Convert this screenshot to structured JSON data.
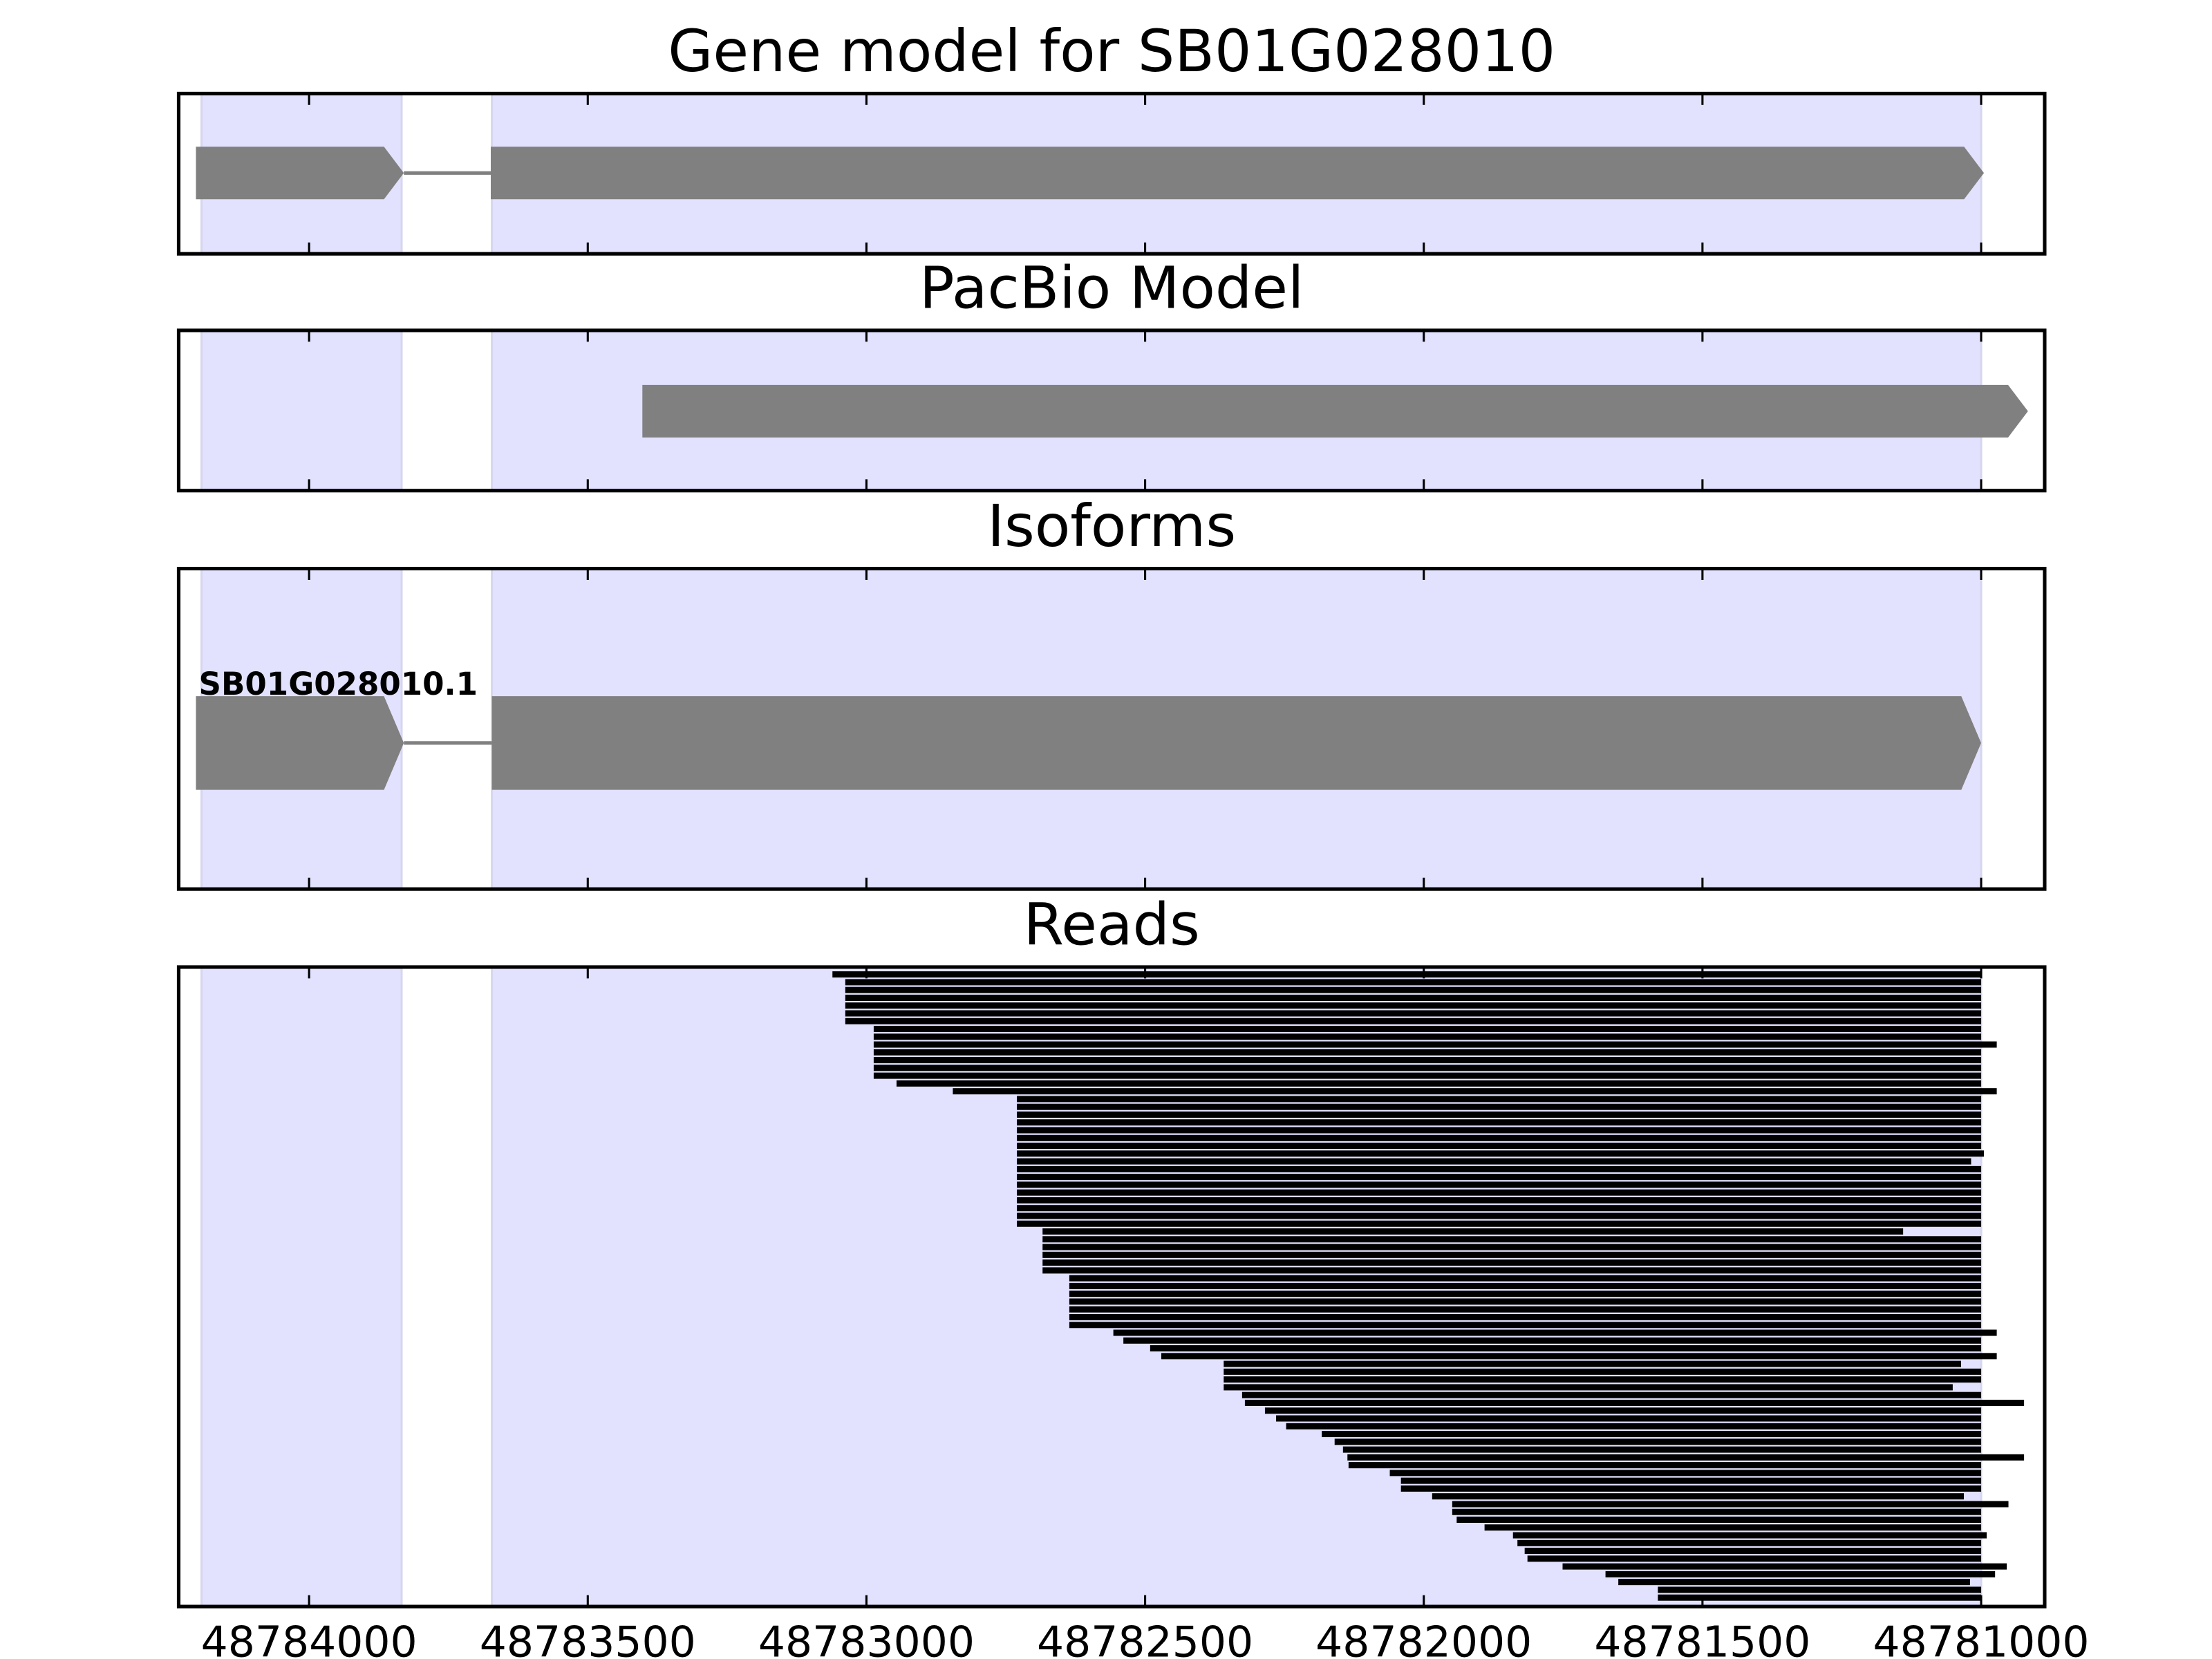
{
  "chart_data": [
    {
      "type": "gene",
      "title": "Gene model for SB01G028010",
      "xlim": [
        48784234,
        48780886
      ],
      "xticks": [
        48784000,
        48783500,
        48783000,
        48782500,
        48782000,
        48781500,
        48781000
      ],
      "highlight_regions": [
        [
          48784193,
          48783834
        ],
        [
          48783672,
          48781000
        ]
      ],
      "highlight_color": "#e2e2ff",
      "exons": [
        {
          "start": 48784203,
          "end": 48783830
        },
        {
          "start": 48783674,
          "end": 48780995
        }
      ],
      "color": "#808080"
    },
    {
      "type": "gene",
      "title": "PacBio Model",
      "xlim": [
        48784234,
        48780886
      ],
      "xticks": [
        48784000,
        48783500,
        48783000,
        48782500,
        48782000,
        48781500,
        48781000
      ],
      "highlight_regions": [
        [
          48784193,
          48783834
        ],
        [
          48783672,
          48781000
        ]
      ],
      "highlight_color": "#e2e2ff",
      "exons": [
        {
          "start": 48783402,
          "end": 48780916
        }
      ],
      "color": "#808080"
    },
    {
      "type": "gene",
      "title": "Isoforms",
      "isoform_label": "SB01G028010.1",
      "xlim": [
        48784234,
        48780886
      ],
      "xticks": [
        48784000,
        48783500,
        48783000,
        48782500,
        48782000,
        48781500,
        48781000
      ],
      "highlight_regions": [
        [
          48784193,
          48783834
        ],
        [
          48783672,
          48781000
        ]
      ],
      "highlight_color": "#e2e2ff",
      "exons": [
        {
          "start": 48784203,
          "end": 48783830
        },
        {
          "start": 48783672,
          "end": 48781000
        }
      ],
      "color": "#808080"
    },
    {
      "type": "reads",
      "title": "Reads",
      "xlim": [
        48784234,
        48780886
      ],
      "xticks": [
        48784000,
        48783500,
        48783000,
        48782500,
        48782000,
        48781500,
        48781000
      ],
      "highlight_regions": [
        [
          48784193,
          48783834
        ],
        [
          48783672,
          48781000
        ]
      ],
      "highlight_color": "#e2e2ff",
      "color": "#000000",
      "starts": [
        48783061,
        48783038,
        48783038,
        48783038,
        48783038,
        48783038,
        48783038,
        48782987,
        48782987,
        48782987,
        48782987,
        48782987,
        48782987,
        48782987,
        48782946,
        48782845,
        48782730,
        48782730,
        48782730,
        48782730,
        48782730,
        48782730,
        48782730,
        48782730,
        48782730,
        48782730,
        48782730,
        48782730,
        48782730,
        48782730,
        48782730,
        48782730,
        48782730,
        48782684,
        48782684,
        48782684,
        48782684,
        48782684,
        48782684,
        48782636,
        48782636,
        48782636,
        48782636,
        48782636,
        48782636,
        48782636,
        48782557,
        48782539,
        48782491,
        48782471,
        48782359,
        48782359,
        48782359,
        48782359,
        48782326,
        48782321,
        48782285,
        48782265,
        48782247,
        48782183,
        48782160,
        48782145,
        48782137,
        48782135,
        48782061,
        48782041,
        48782041,
        48781985,
        48781949,
        48781949,
        48781941,
        48781891,
        48781840,
        48781832,
        48781819,
        48781814,
        48781751,
        48781674,
        48781651,
        48781580,
        48781580
      ],
      "ends": [
        48781000,
        48781000,
        48781000,
        48781000,
        48781000,
        48781000,
        48781000,
        48781000,
        48781000,
        48780972,
        48781000,
        48781000,
        48781000,
        48781000,
        48781000,
        48780972,
        48781000,
        48781000,
        48781000,
        48781000,
        48781000,
        48781000,
        48781000,
        48780995,
        48781018,
        48781000,
        48781000,
        48781000,
        48781000,
        48781000,
        48781000,
        48781000,
        48781000,
        48781140,
        48781000,
        48781000,
        48781000,
        48781000,
        48781000,
        48781000,
        48781000,
        48781000,
        48781000,
        48781000,
        48781000,
        48781000,
        48780972,
        48781000,
        48781000,
        48780972,
        48781036,
        48781000,
        48781000,
        48781051,
        48781000,
        48780923,
        48781000,
        48781000,
        48781000,
        48781000,
        48781000,
        48781000,
        48780923,
        48781000,
        48781000,
        48781000,
        48781000,
        48781031,
        48780951,
        48781000,
        48781000,
        48781000,
        48780990,
        48781000,
        48781000,
        48781000,
        48780954,
        48780975,
        48781020,
        48781000,
        48781000
      ]
    }
  ]
}
